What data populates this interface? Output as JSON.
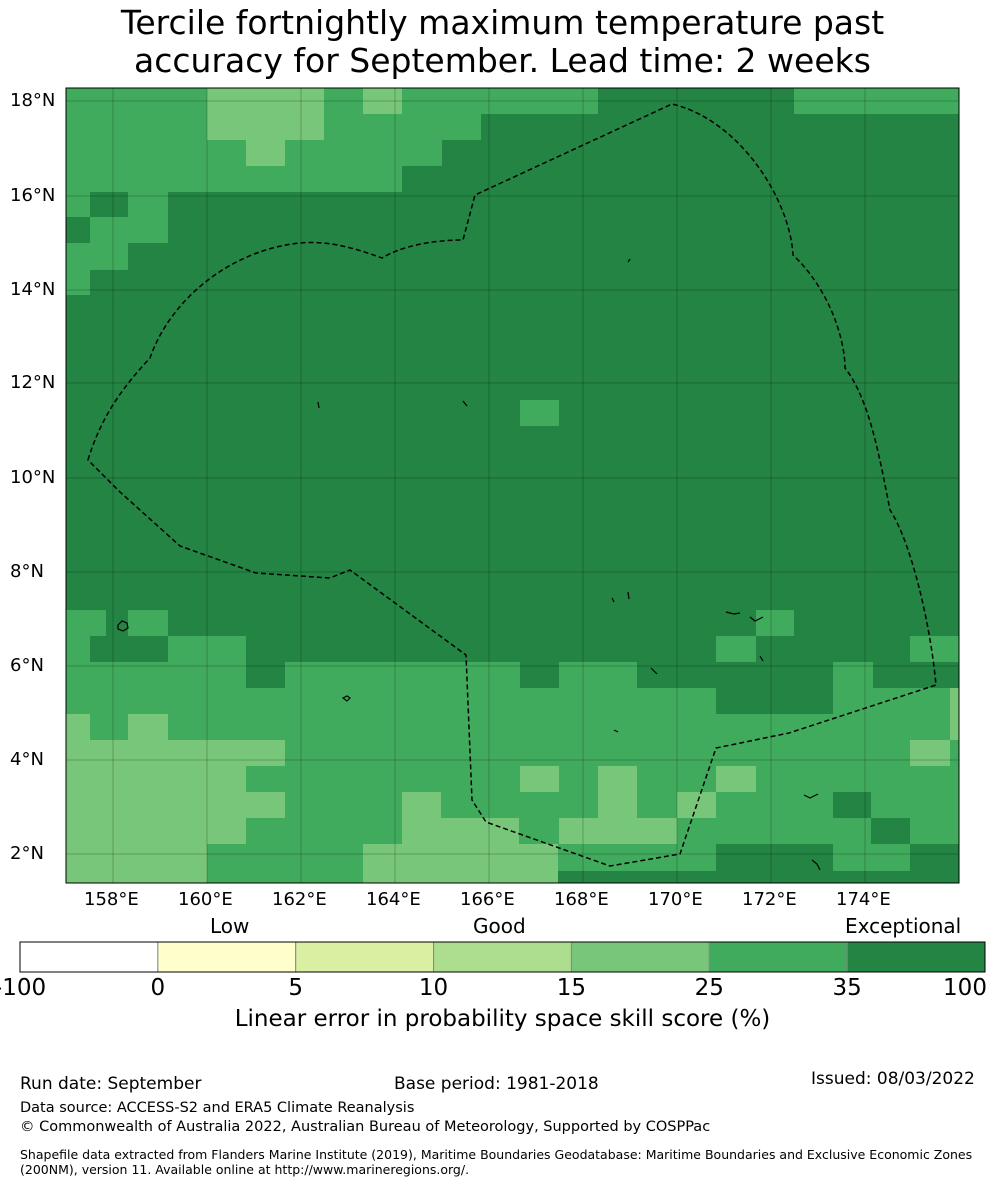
{
  "title_line1": "Tercile fortnightly maximum temperature past",
  "title_line2": "accuracy for September. Lead time: 2 weeks",
  "lat_labels": [
    "18°N",
    "16°N",
    "14°N",
    "12°N",
    "10°N",
    "8°N",
    "6°N",
    "4°N",
    "2°N"
  ],
  "lon_labels": [
    "158°E",
    "160°E",
    "162°E",
    "164°E",
    "166°E",
    "168°E",
    "170°E",
    "172°E",
    "174°E"
  ],
  "colorbar": {
    "categories": [
      "Low",
      "Good",
      "Exceptional"
    ],
    "ticks": [
      "-100",
      "0",
      "5",
      "10",
      "15",
      "25",
      "35",
      "100"
    ],
    "colors": [
      "#ffffff",
      "#ffffcc",
      "#d9f0a3",
      "#addd8e",
      "#78c679",
      "#41ab5d",
      "#238443"
    ],
    "label": "Linear error in probability space skill score (%)"
  },
  "footer": {
    "run_date": "Run date: September",
    "base_period": "Base period: 1981-2018",
    "issued": "Issued: 08/03/2022",
    "data_source": "Data source: ACCESS-S2 and ERA5 Climate Reanalysis",
    "copyright": "© Commonwealth of Australia 2022, Australian Bureau of Meteorology, Supported by COSPPac",
    "shapefile": "Shapefile data extracted from Flanders Marine Institute (2019), Maritime Boundaries Geodatabase: Maritime Boundaries and Exclusive Economic Zones (200NM), version 11. Available online at http://www.marineregions.org/."
  }
}
